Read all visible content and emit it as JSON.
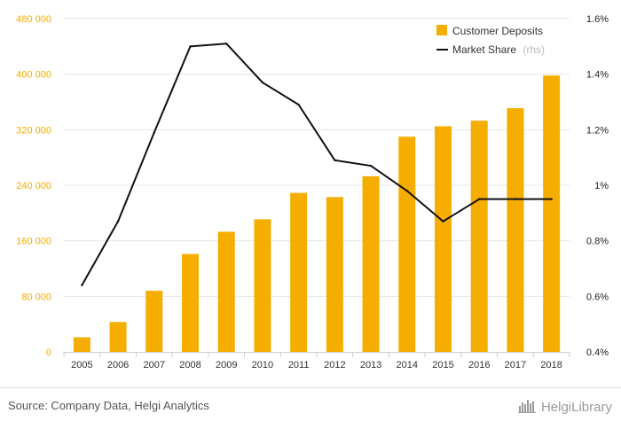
{
  "chart_data": {
    "type": "bar",
    "categories": [
      "2005",
      "2006",
      "2007",
      "2008",
      "2009",
      "2010",
      "2011",
      "2012",
      "2013",
      "2014",
      "2015",
      "2016",
      "2017",
      "2018"
    ],
    "series": [
      {
        "name": "Customer Deposits",
        "kind": "bar",
        "axis": "left",
        "color": "#F5AD00",
        "values": [
          21000,
          43000,
          88000,
          141000,
          173000,
          191000,
          229000,
          223000,
          253000,
          310000,
          325000,
          333000,
          351000,
          398000
        ]
      },
      {
        "name": "Market Share",
        "kind": "line",
        "axis": "right",
        "color": "#111111",
        "values": [
          0.64,
          0.87,
          1.19,
          1.5,
          1.51,
          1.37,
          1.29,
          1.09,
          1.07,
          0.98,
          0.87,
          0.95,
          0.95,
          0.95
        ]
      }
    ],
    "y_left": {
      "lim": [
        0,
        480000
      ],
      "ticks": [
        0,
        80000,
        160000,
        240000,
        320000,
        400000,
        480000
      ],
      "tick_labels": [
        "0",
        "80 000",
        "160 000",
        "240 000",
        "320 000",
        "400 000",
        "480 000"
      ],
      "color": "#F5AD00"
    },
    "y_right": {
      "lim": [
        0.4,
        1.6
      ],
      "ticks": [
        0.4,
        0.6,
        0.8,
        1.0,
        1.2,
        1.4,
        1.6
      ],
      "tick_labels": [
        "0.4%",
        "0.6%",
        "0.8%",
        "1%",
        "1.2%",
        "1.4%",
        "1.6%"
      ]
    },
    "legend": {
      "position": "top-right",
      "items": [
        {
          "label": "Customer Deposits",
          "suffix": ""
        },
        {
          "label": "Market Share",
          "suffix": "(rhs)"
        }
      ]
    },
    "title": "",
    "xlabel": "",
    "ylabel": "",
    "grid": true
  },
  "footer": {
    "source": "Source: Company Data, Helgi Analytics",
    "brand": "HelgiLibrary"
  }
}
